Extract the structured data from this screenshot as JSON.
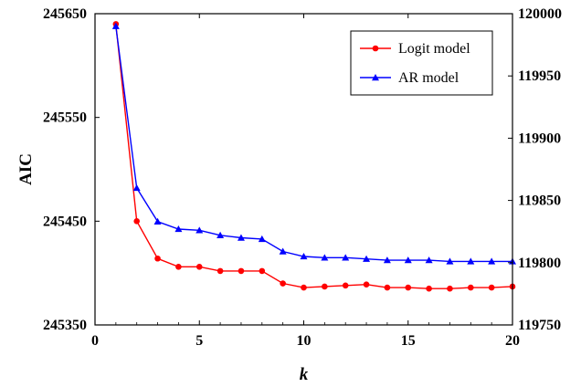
{
  "chart_data": {
    "type": "line",
    "xlabel": "k",
    "ylabel_left": "AIC",
    "xlim": [
      0,
      20
    ],
    "ylim_left": [
      245350,
      245650
    ],
    "ylim_right": [
      119750,
      120000
    ],
    "x_ticks": [
      0,
      5,
      10,
      15,
      20
    ],
    "x_tick_labels": [
      "0",
      "5",
      "10",
      "15",
      "20"
    ],
    "y_left_ticks": [
      245350,
      245450,
      245550,
      245650
    ],
    "y_left_tick_labels": [
      "245350",
      "245450",
      "245550",
      "245650"
    ],
    "y_right_ticks": [
      119750,
      119800,
      119850,
      119900,
      119950,
      120000
    ],
    "y_right_tick_labels": [
      "119750",
      "119800",
      "119850",
      "119900",
      "119950",
      "120000"
    ],
    "legend_position": "top-right",
    "grid": false,
    "x": [
      1,
      2,
      3,
      4,
      5,
      6,
      7,
      8,
      9,
      10,
      11,
      12,
      13,
      14,
      15,
      16,
      17,
      18,
      19,
      20
    ],
    "series": [
      {
        "name": "Logit model",
        "axis": "left",
        "color": "#ff0000",
        "marker": "circle",
        "values": [
          245640,
          245450,
          245414,
          245406,
          245406,
          245402,
          245402,
          245402,
          245390,
          245386,
          245387,
          245388,
          245389,
          245386,
          245386,
          245385,
          245385,
          245386,
          245386,
          245387
        ]
      },
      {
        "name": "AR model",
        "axis": "right",
        "color": "#0000ff",
        "marker": "triangle",
        "values": [
          119990,
          119860,
          119833,
          119827,
          119826,
          119822,
          119820,
          119819,
          119809,
          119805,
          119804,
          119804,
          119803,
          119802,
          119802,
          119802,
          119801,
          119801,
          119801,
          119801
        ]
      }
    ]
  }
}
